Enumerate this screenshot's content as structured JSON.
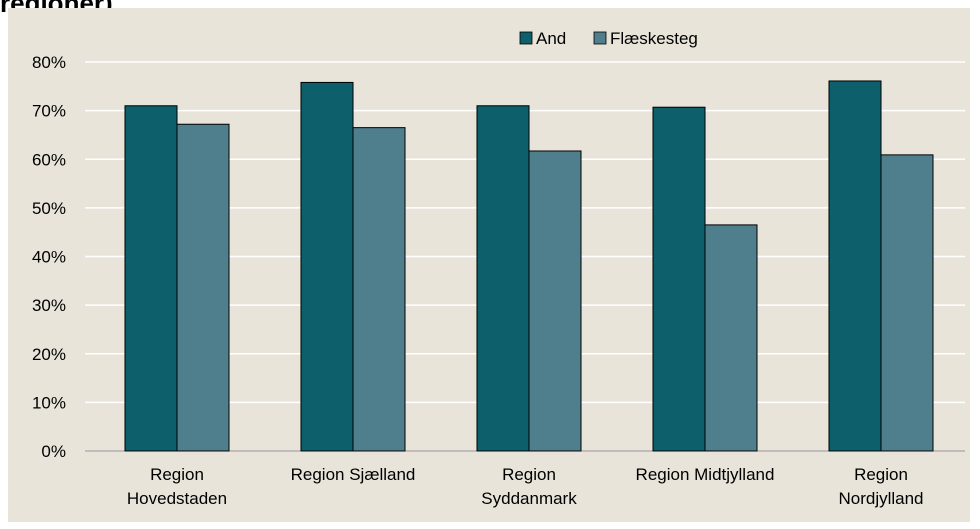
{
  "title_fragment": "regioner)",
  "colors": {
    "background": "#e8e4da",
    "plot_area": "#e8e4da",
    "gridline": "#ffffff",
    "and": "#0c5f6b",
    "flaeskesteg": "#4f7f8c"
  },
  "chart_data": {
    "type": "bar",
    "categories": [
      [
        "Region",
        "Hovedstaden"
      ],
      [
        "Region Sjælland"
      ],
      [
        "Region",
        "Syddanmark"
      ],
      [
        "Region Midtjylland"
      ],
      [
        "Region",
        "Nordjylland"
      ]
    ],
    "series": [
      {
        "name": "And",
        "values": [
          0.71,
          0.758,
          0.71,
          0.707,
          0.761
        ]
      },
      {
        "name": "Flæskesteg",
        "values": [
          0.672,
          0.665,
          0.617,
          0.465,
          0.609
        ]
      }
    ],
    "ylim": [
      0,
      0.8
    ],
    "yticks": [
      "0%",
      "10%",
      "20%",
      "30%",
      "40%",
      "50%",
      "60%",
      "70%",
      "80%"
    ],
    "grid": true,
    "legend": "top-right",
    "xlabel": "",
    "ylabel": ""
  }
}
